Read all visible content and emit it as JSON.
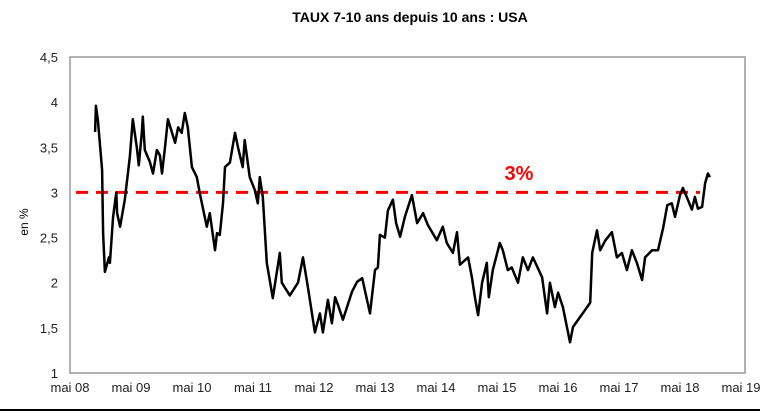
{
  "chart_data": {
    "type": "line",
    "title": "TAUX 7-10 ans depuis 10 ans : USA",
    "xlabel": "",
    "ylabel": "en %",
    "ylim": [
      1,
      4.5
    ],
    "xlim": [
      "2008-05-01",
      "2019-05-01"
    ],
    "yticks": [
      "4,5",
      "4",
      "3,5",
      "3",
      "2,5",
      "2",
      "1,5",
      "1"
    ],
    "ytick_values": [
      4.5,
      4,
      3.5,
      3,
      2.5,
      2,
      1.5,
      1
    ],
    "xticks": [
      "mai 08",
      "mai 09",
      "mai 10",
      "mai 11",
      "mai 12",
      "mai 13",
      "mai 14",
      "mai 15",
      "mai 16",
      "mai 17",
      "mai 18",
      "mai 19"
    ],
    "grid": false,
    "series_color": "#000000",
    "reference_line": {
      "value": 3,
      "label": "3%",
      "color": "#ff0000",
      "style": "dashed"
    },
    "series": [
      {
        "x": [
          "2008-09-28",
          "2008-10-03",
          "2008-10-15",
          "2008-11-09",
          "2008-11-15",
          "2008-11-26",
          "2008-12-20",
          "2008-12-26",
          "2009-01-14",
          "2009-02-02",
          "2009-02-07",
          "2009-02-25",
          "2009-03-25",
          "2009-04-24",
          "2009-05-12",
          "2009-06-05",
          "2009-06-17",
          "2009-07-05",
          "2009-07-11",
          "2009-07-23",
          "2009-08-22",
          "2009-09-10",
          "2009-10-03",
          "2009-10-21",
          "2009-11-03",
          "2009-11-21",
          "2009-12-08",
          "2010-01-20",
          "2010-02-07",
          "2010-03-01",
          "2010-03-19",
          "2010-04-06",
          "2010-05-01",
          "2010-05-30",
          "2010-06-17",
          "2010-07-29",
          "2010-08-16",
          "2010-09-16",
          "2010-09-28",
          "2010-10-15",
          "2010-11-03",
          "2010-11-15",
          "2010-12-14",
          "2011-01-14",
          "2011-02-02",
          "2011-03-01",
          "2011-03-13",
          "2011-04-12",
          "2011-05-12",
          "2011-05-30",
          "2011-06-11",
          "2011-06-29",
          "2011-07-23",
          "2011-08-28",
          "2011-10-09",
          "2011-10-21",
          "2011-12-08",
          "2012-01-26",
          "2012-02-25",
          "2012-03-25",
          "2012-05-06",
          "2012-06-05",
          "2012-06-23",
          "2012-07-23",
          "2012-08-16",
          "2012-09-04",
          "2012-09-22",
          "2012-10-21",
          "2012-12-14",
          "2013-01-14",
          "2013-02-13",
          "2013-04-01",
          "2013-05-01",
          "2013-05-18",
          "2013-05-30",
          "2013-06-29",
          "2013-07-17",
          "2013-08-16",
          "2013-09-04",
          "2013-09-28",
          "2013-10-27",
          "2013-12-08",
          "2014-01-08",
          "2014-02-13",
          "2014-03-13",
          "2014-05-06",
          "2014-06-11",
          "2014-07-05",
          "2014-08-10",
          "2014-09-04",
          "2014-09-21",
          "2014-11-09",
          "2014-12-02",
          "2014-12-20",
          "2015-01-08",
          "2015-02-01",
          "2015-03-01",
          "2015-03-13",
          "2015-04-06",
          "2015-05-18",
          "2015-06-05",
          "2015-07-05",
          "2015-07-28",
          "2015-09-04",
          "2015-10-03",
          "2015-11-03",
          "2015-12-02",
          "2016-01-26",
          "2016-02-25",
          "2016-03-13",
          "2016-04-12",
          "2016-05-01",
          "2016-05-30",
          "2016-07-11",
          "2016-07-29",
          "2016-09-10",
          "2016-10-10",
          "2016-11-09",
          "2016-11-21",
          "2016-12-20",
          "2017-01-08",
          "2017-02-08",
          "2017-03-19",
          "2017-04-18",
          "2017-05-18",
          "2017-06-17",
          "2017-07-17",
          "2017-08-16",
          "2017-09-16",
          "2017-10-04",
          "2017-11-15",
          "2017-12-20",
          "2018-01-20",
          "2018-02-14",
          "2018-03-13",
          "2018-04-01",
          "2018-05-01",
          "2018-05-18",
          "2018-06-17",
          "2018-07-11",
          "2018-07-29",
          "2018-08-16",
          "2018-09-10",
          "2018-09-28",
          "2018-10-15",
          "2018-10-27"
        ],
        "y": [
          3.67,
          3.96,
          3.8,
          3.25,
          2.55,
          2.12,
          2.28,
          2.22,
          2.73,
          3.0,
          2.77,
          2.62,
          2.92,
          3.39,
          3.81,
          3.5,
          3.3,
          3.66,
          3.84,
          3.47,
          3.34,
          3.21,
          3.47,
          3.41,
          3.21,
          3.5,
          3.81,
          3.55,
          3.72,
          3.66,
          3.88,
          3.72,
          3.28,
          3.17,
          2.99,
          2.62,
          2.77,
          2.36,
          2.55,
          2.53,
          2.88,
          3.28,
          3.33,
          3.66,
          3.49,
          3.28,
          3.58,
          3.17,
          3.03,
          2.88,
          3.17,
          2.95,
          2.22,
          1.83,
          2.33,
          2.0,
          1.86,
          2.0,
          2.28,
          1.95,
          1.45,
          1.66,
          1.45,
          1.81,
          1.55,
          1.84,
          1.75,
          1.59,
          1.9,
          2.01,
          2.05,
          1.66,
          2.14,
          2.17,
          2.53,
          2.5,
          2.8,
          2.92,
          2.66,
          2.51,
          2.73,
          2.97,
          2.66,
          2.77,
          2.64,
          2.47,
          2.62,
          2.44,
          2.33,
          2.56,
          2.2,
          2.28,
          2.06,
          1.84,
          1.64,
          2.0,
          2.22,
          1.84,
          2.14,
          2.44,
          2.36,
          2.14,
          2.17,
          2.0,
          2.28,
          2.14,
          2.28,
          2.06,
          1.66,
          2.0,
          1.73,
          1.89,
          1.73,
          1.34,
          1.51,
          1.62,
          1.7,
          1.78,
          2.33,
          2.58,
          2.36,
          2.47,
          2.56,
          2.28,
          2.33,
          2.14,
          2.36,
          2.22,
          2.03,
          2.28,
          2.36,
          2.36,
          2.61,
          2.86,
          2.88,
          2.73,
          2.97,
          3.05,
          2.92,
          2.81,
          2.95,
          2.82,
          2.84,
          3.1,
          3.21,
          3.17
        ]
      }
    ]
  }
}
